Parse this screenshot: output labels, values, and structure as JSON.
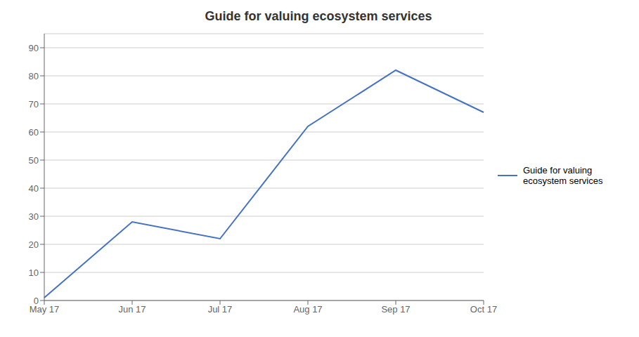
{
  "chart_data": {
    "type": "line",
    "title": "Guide for valuing ecosystem services",
    "categories": [
      "May 17",
      "Jun 17",
      "Jul 17",
      "Aug 17",
      "Sep 17",
      "Oct 17"
    ],
    "series": [
      {
        "name": "Guide for valuing\necosystem services",
        "color": "#4472C4",
        "values": [
          1,
          28,
          22,
          62,
          82,
          67
        ]
      }
    ],
    "ylim": [
      0,
      95
    ],
    "yticks": [
      0,
      10,
      20,
      30,
      40,
      50,
      60,
      70,
      80,
      90
    ],
    "grid": true,
    "legend": "right"
  }
}
